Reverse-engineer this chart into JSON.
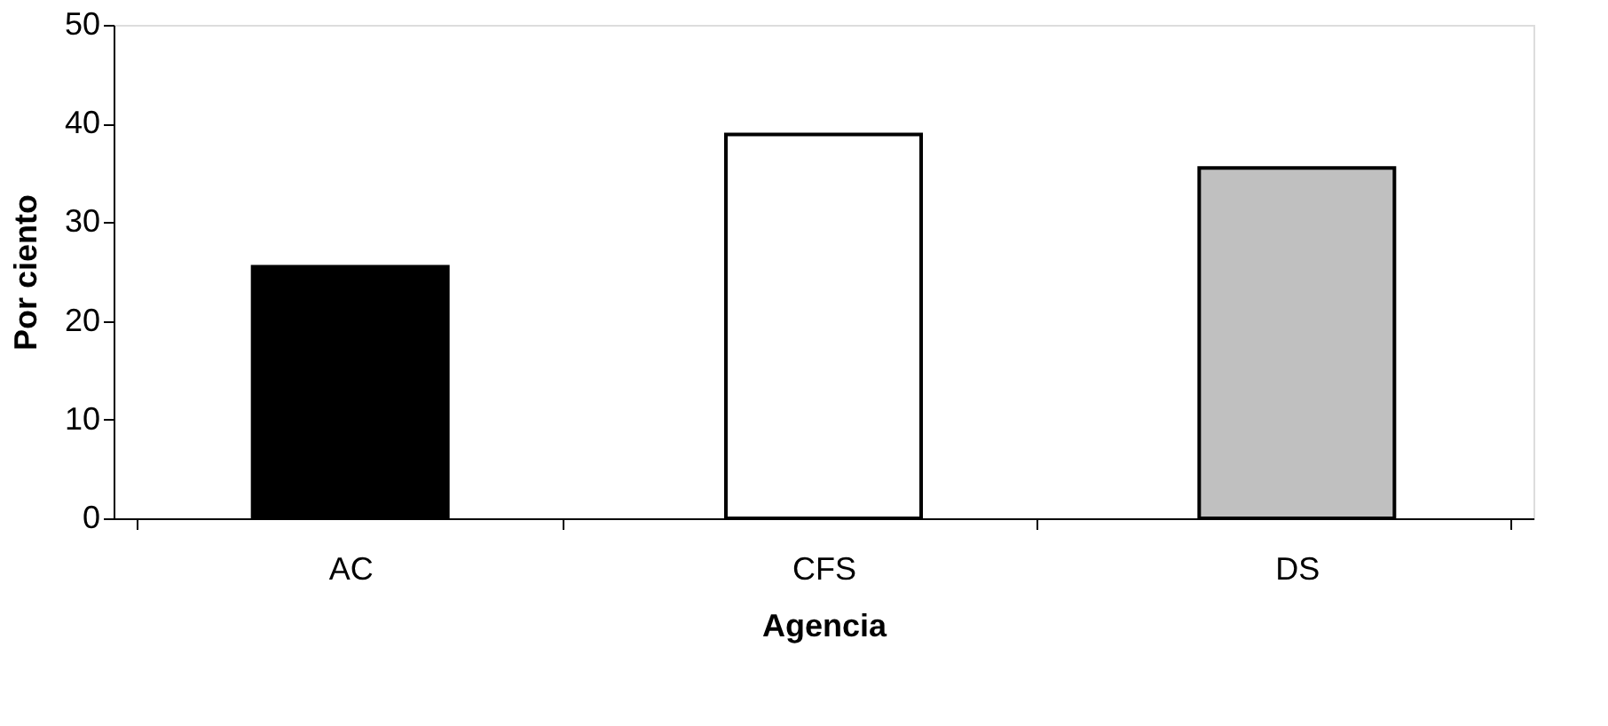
{
  "chart_data": {
    "type": "bar",
    "xlabel": "Agencia",
    "ylabel": "Por ciento",
    "categories": [
      "AC",
      "CFS",
      "DS"
    ],
    "values": [
      25.5,
      38.9,
      35.5
    ],
    "colors": [
      "#000000",
      "#ffffff",
      "#c0c0c0"
    ],
    "ylim": [
      0,
      50
    ],
    "yticks": [
      0,
      10,
      20,
      30,
      40,
      50
    ],
    "grid": false
  }
}
